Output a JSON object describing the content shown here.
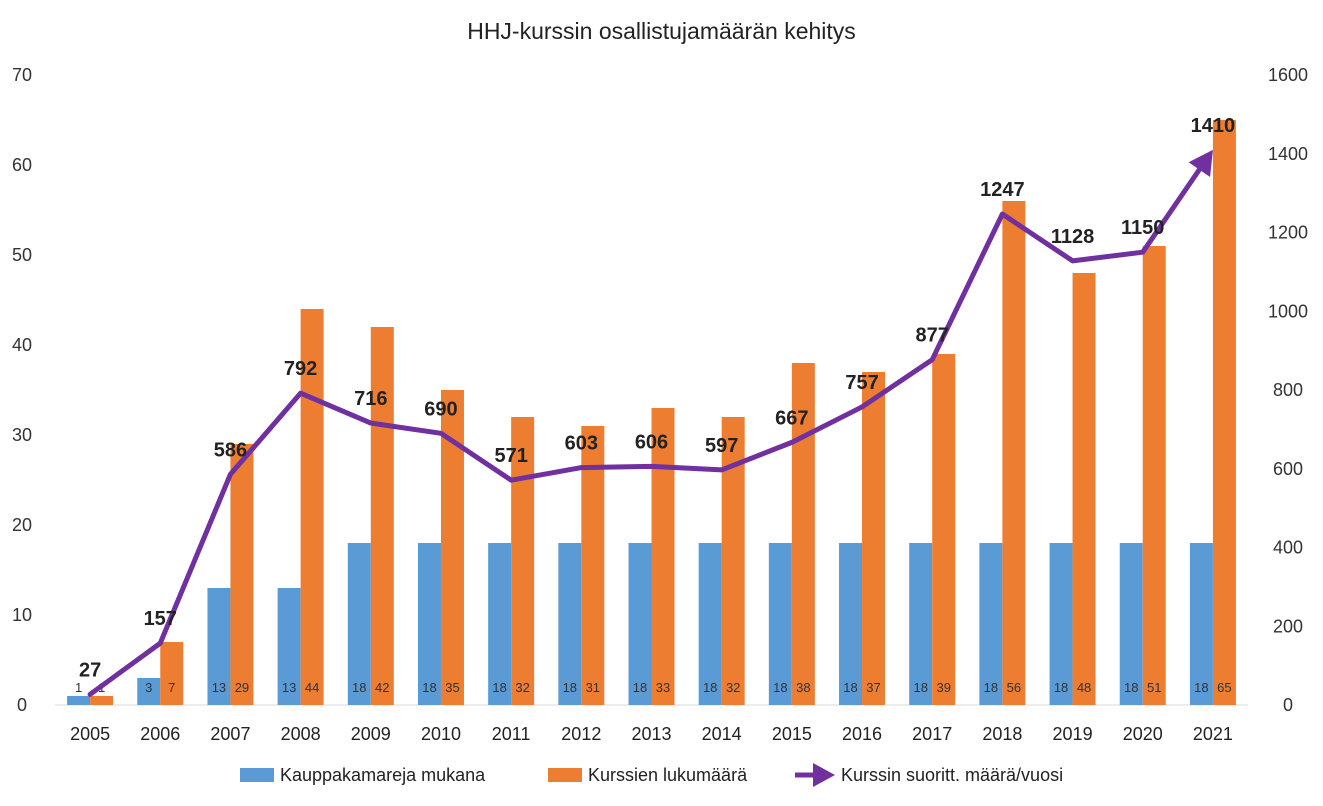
{
  "chart_data": {
    "type": "bar",
    "title": "HHJ-kurssin osallistujamäärän kehitys",
    "categories": [
      "2005",
      "2006",
      "2007",
      "2008",
      "2009",
      "2010",
      "2011",
      "2012",
      "2013",
      "2014",
      "2015",
      "2016",
      "2017",
      "2018",
      "2019",
      "2020",
      "2021"
    ],
    "series": [
      {
        "name": "Kauppakamareja mukana",
        "type": "bar",
        "axis": "left",
        "color": "#5b9bd5",
        "values": [
          1,
          3,
          13,
          13,
          18,
          18,
          18,
          18,
          18,
          18,
          18,
          18,
          18,
          18,
          18,
          18,
          18
        ]
      },
      {
        "name": "Kurssien lukumäärä",
        "type": "bar",
        "axis": "left",
        "color": "#ed7d31",
        "values": [
          1,
          7,
          29,
          44,
          42,
          35,
          32,
          31,
          33,
          32,
          38,
          37,
          39,
          56,
          48,
          51,
          65
        ]
      },
      {
        "name": "Kurssin suoritt. määrä/vuosi",
        "type": "line",
        "axis": "right",
        "color": "#7030a0",
        "values": [
          27,
          157,
          586,
          792,
          716,
          690,
          571,
          603,
          606,
          597,
          667,
          757,
          877,
          1247,
          1128,
          1150,
          1410
        ]
      }
    ],
    "y_left": {
      "min": 0,
      "max": 70,
      "ticks": [
        "0",
        "10",
        "20",
        "30",
        "40",
        "50",
        "60",
        "70"
      ]
    },
    "y_right": {
      "min": 0,
      "max": 1600,
      "ticks": [
        "0",
        "200",
        "400",
        "600",
        "800",
        "1000",
        "1200",
        "1400",
        "1600"
      ]
    },
    "grid": false,
    "legend_position": "bottom"
  }
}
